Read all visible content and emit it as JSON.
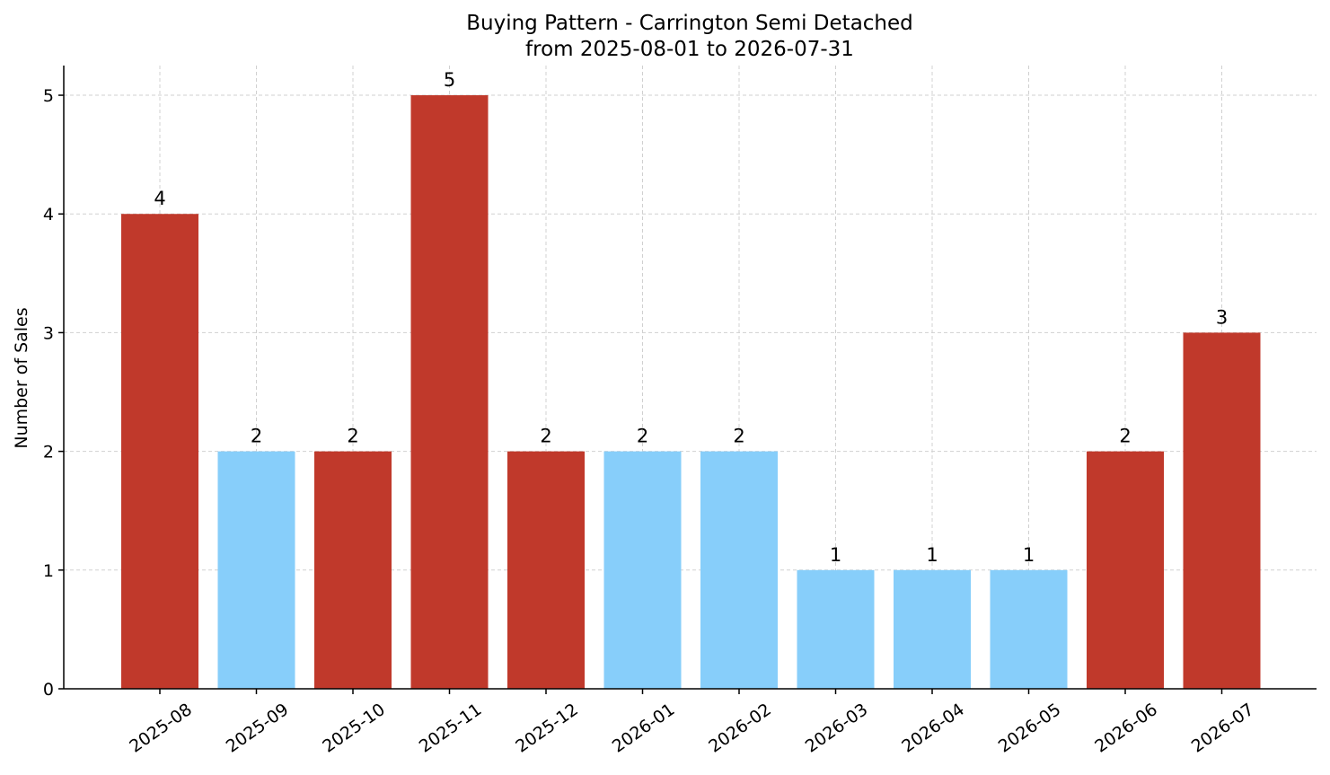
{
  "chart_data": {
    "type": "bar",
    "title": "Buying Pattern - Carrington Semi Detached",
    "subtitle": "from 2025-08-01 to 2026-07-31",
    "xlabel": "",
    "ylabel": "Number of Sales",
    "ylim": [
      0,
      5.25
    ],
    "yticks": [
      0,
      1,
      2,
      3,
      4,
      5
    ],
    "grid": true,
    "categories": [
      "2025-08",
      "2025-09",
      "2025-10",
      "2025-11",
      "2025-12",
      "2026-01",
      "2026-02",
      "2026-03",
      "2026-04",
      "2026-05",
      "2026-06",
      "2026-07"
    ],
    "values": [
      4,
      2,
      2,
      5,
      2,
      2,
      2,
      1,
      1,
      1,
      2,
      3
    ],
    "bar_colors": [
      "#c0392b",
      "#87cefa",
      "#c0392b",
      "#c0392b",
      "#c0392b",
      "#87cefa",
      "#87cefa",
      "#87cefa",
      "#87cefa",
      "#87cefa",
      "#c0392b",
      "#c0392b"
    ],
    "data_labels": [
      "4",
      "2",
      "2",
      "5",
      "2",
      "2",
      "2",
      "1",
      "1",
      "1",
      "2",
      "3"
    ]
  }
}
